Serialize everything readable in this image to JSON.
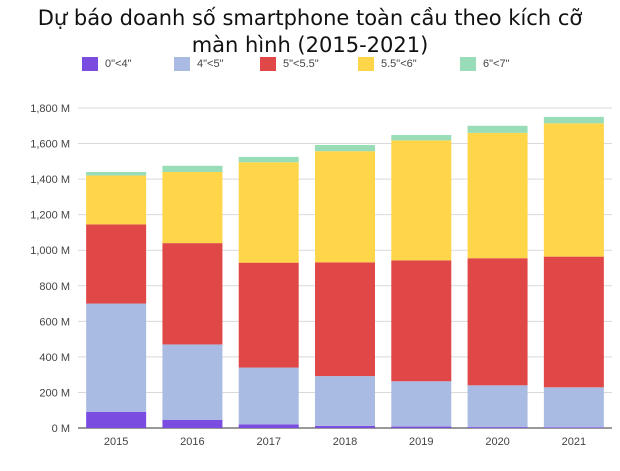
{
  "chart_data": {
    "type": "bar",
    "stacked": true,
    "title_lines": [
      "Dự báo doanh số smartphone toàn cầu theo kích cỡ",
      "màn hình (2015-2021)"
    ],
    "categories": [
      "2015",
      "2016",
      "2017",
      "2018",
      "2019",
      "2020",
      "2021"
    ],
    "series": [
      {
        "name": "0\"<4\"",
        "color": "#7A4CE0",
        "values": [
          90,
          45,
          20,
          12,
          8,
          5,
          4
        ]
      },
      {
        "name": "4\"<5\"",
        "color": "#A9BBE3",
        "values": [
          610,
          425,
          320,
          280,
          255,
          235,
          225
        ]
      },
      {
        "name": "5\"<5.5\"",
        "color": "#E04848",
        "values": [
          445,
          570,
          590,
          640,
          680,
          715,
          735
        ]
      },
      {
        "name": "5.5\"<6\"",
        "color": "#FFD54A",
        "values": [
          275,
          400,
          565,
          625,
          675,
          705,
          750
        ]
      },
      {
        "name": "6\"<7\"",
        "color": "#98DDB8",
        "values": [
          20,
          35,
          30,
          35,
          30,
          40,
          36
        ]
      }
    ],
    "ylim": [
      0,
      1800
    ],
    "yticks": [
      0,
      200,
      400,
      600,
      800,
      1000,
      1200,
      1400,
      1600,
      1800
    ],
    "ytick_labels": [
      "0 M",
      "200 M",
      "400 M",
      "600 M",
      "800 M",
      "1,000 M",
      "1,200 M",
      "1,400 M",
      "1,600 M",
      "1,800 M"
    ],
    "grid": true,
    "legend_position": "top"
  }
}
